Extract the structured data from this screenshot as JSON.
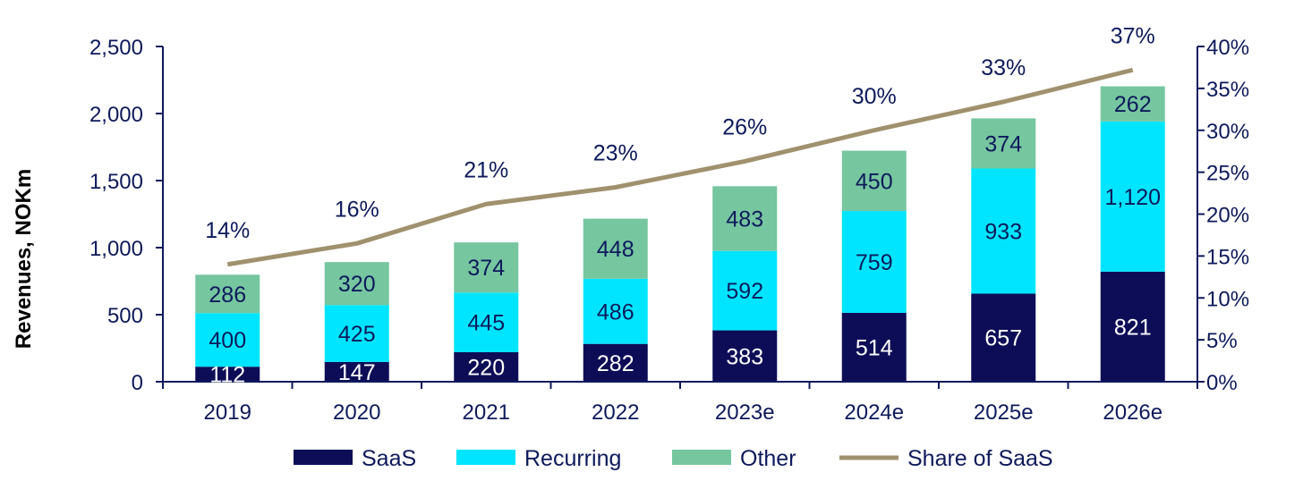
{
  "chart_data": {
    "type": "bar",
    "stacked": true,
    "categories": [
      "2019",
      "2020",
      "2021",
      "2022",
      "2023e",
      "2024e",
      "2025e",
      "2026e"
    ],
    "series": [
      {
        "name": "SaaS",
        "values": [
          112,
          147,
          220,
          282,
          383,
          514,
          657,
          821
        ],
        "labels": [
          "112",
          "147",
          "220",
          "282",
          "383",
          "514",
          "657",
          "821"
        ],
        "color": "#0d0d57",
        "label_color": "#ffffff"
      },
      {
        "name": "Recurring",
        "values": [
          400,
          425,
          445,
          486,
          592,
          759,
          933,
          1120
        ],
        "labels": [
          "400",
          "425",
          "445",
          "486",
          "592",
          "759",
          "933",
          "1,120"
        ],
        "color": "#00e5ff",
        "label_color": "#0d1a5b"
      },
      {
        "name": "Other",
        "values": [
          286,
          320,
          374,
          448,
          483,
          450,
          374,
          262
        ],
        "labels": [
          "286",
          "320",
          "374",
          "448",
          "483",
          "450",
          "374",
          "262"
        ],
        "color": "#76c6a0",
        "label_color": "#0d1a5b"
      }
    ],
    "line_series": {
      "name": "Share of SaaS",
      "values": [
        14,
        16.5,
        21.2,
        23.2,
        26.3,
        30,
        33.4,
        37.2
      ],
      "labels": [
        "14%",
        "16%",
        "21%",
        "23%",
        "26%",
        "30%",
        "33%",
        "37%"
      ],
      "color": "#a0916e",
      "axis": "right"
    },
    "ylabel": "Revenues, NOKm",
    "ylim": [
      0,
      2500
    ],
    "yticks": [
      "0",
      "500",
      "1,000",
      "1,500",
      "2,000",
      "2,500"
    ],
    "y2lim": [
      0,
      40
    ],
    "y2ticks": [
      "0%",
      "5%",
      "10%",
      "15%",
      "20%",
      "25%",
      "30%",
      "35%",
      "40%"
    ],
    "grid": false,
    "legend_position": "bottom",
    "axis_color": "#0d1a5b"
  }
}
